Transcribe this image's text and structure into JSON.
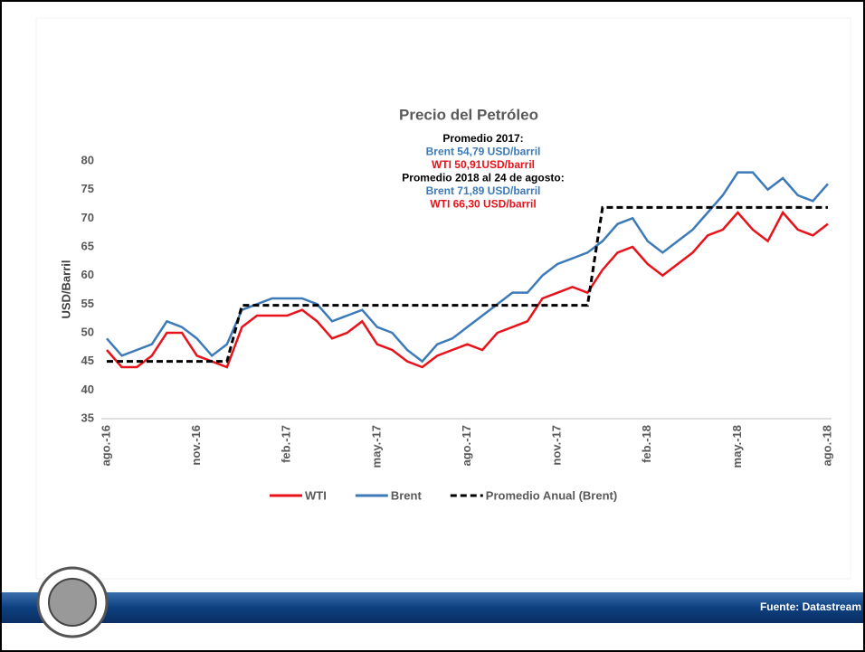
{
  "chart_data": {
    "type": "line",
    "title": "Precio del Petróleo",
    "y_label": "USD/Barril",
    "annotations": [
      {
        "text": "Promedio 2017:",
        "color": "#000000"
      },
      {
        "text": "Brent 54,79 USD/barril",
        "color": "#3d7ab8"
      },
      {
        "text": "WTI 50,91USD/barril",
        "color": "#e8121a"
      },
      {
        "text": "Promedio 2018 al 24 de agosto:",
        "color": "#000000"
      },
      {
        "text": "Brent 71,89 USD/barril",
        "color": "#3d7ab8"
      },
      {
        "text": "WTI 66,30 USD/barril",
        "color": "#e8121a"
      }
    ],
    "categories": [
      "ago.-16",
      null,
      null,
      null,
      null,
      null,
      "nov.-16",
      null,
      null,
      null,
      null,
      null,
      "feb.-17",
      null,
      null,
      null,
      null,
      null,
      "may.-17",
      null,
      null,
      null,
      null,
      null,
      "ago.-17",
      null,
      null,
      null,
      null,
      null,
      "nov.-17",
      null,
      null,
      null,
      null,
      null,
      "feb.-18",
      null,
      null,
      null,
      null,
      null,
      "may.-18",
      null,
      null,
      null,
      null,
      null,
      "ago.-18"
    ],
    "series": [
      {
        "name": "WTI",
        "color": "#e8121a",
        "dash": false,
        "values": [
          47,
          44,
          44,
          46,
          50,
          50,
          46,
          45,
          44,
          51,
          53,
          53,
          53,
          54,
          52,
          49,
          50,
          52,
          48,
          47,
          45,
          44,
          46,
          47,
          48,
          47,
          50,
          51,
          52,
          56,
          57,
          58,
          57,
          61,
          64,
          65,
          62,
          60,
          62,
          64,
          67,
          68,
          71,
          68,
          66,
          71,
          68,
          67,
          69
        ]
      },
      {
        "name": "Brent",
        "color": "#3d7ab8",
        "dash": false,
        "values": [
          49,
          46,
          47,
          48,
          52,
          51,
          49,
          46,
          48,
          54,
          55,
          56,
          56,
          56,
          55,
          52,
          53,
          54,
          51,
          50,
          47,
          45,
          48,
          49,
          51,
          53,
          55,
          57,
          57,
          60,
          62,
          63,
          64,
          66,
          69,
          70,
          66,
          64,
          66,
          68,
          71,
          74,
          78,
          78,
          75,
          77,
          74,
          73,
          76
        ]
      },
      {
        "name": "Promedio Anual (Brent)",
        "color": "#000000",
        "dash": true,
        "values": [
          45,
          45,
          45,
          45,
          45,
          45,
          45,
          45,
          45,
          54.79,
          54.79,
          54.79,
          54.79,
          54.79,
          54.79,
          54.79,
          54.79,
          54.79,
          54.79,
          54.79,
          54.79,
          54.79,
          54.79,
          54.79,
          54.79,
          54.79,
          54.79,
          54.79,
          54.79,
          54.79,
          54.79,
          54.79,
          54.79,
          71.89,
          71.89,
          71.89,
          71.89,
          71.89,
          71.89,
          71.89,
          71.89,
          71.89,
          71.89,
          71.89,
          71.89,
          71.89,
          71.89,
          71.89,
          71.89
        ]
      }
    ],
    "ylim": [
      35,
      80
    ],
    "yticks": [
      35,
      40,
      45,
      50,
      55,
      60,
      65,
      70,
      75,
      80
    ],
    "grid": false,
    "legend": "bottom",
    "source": "Fuente: Datastream"
  }
}
